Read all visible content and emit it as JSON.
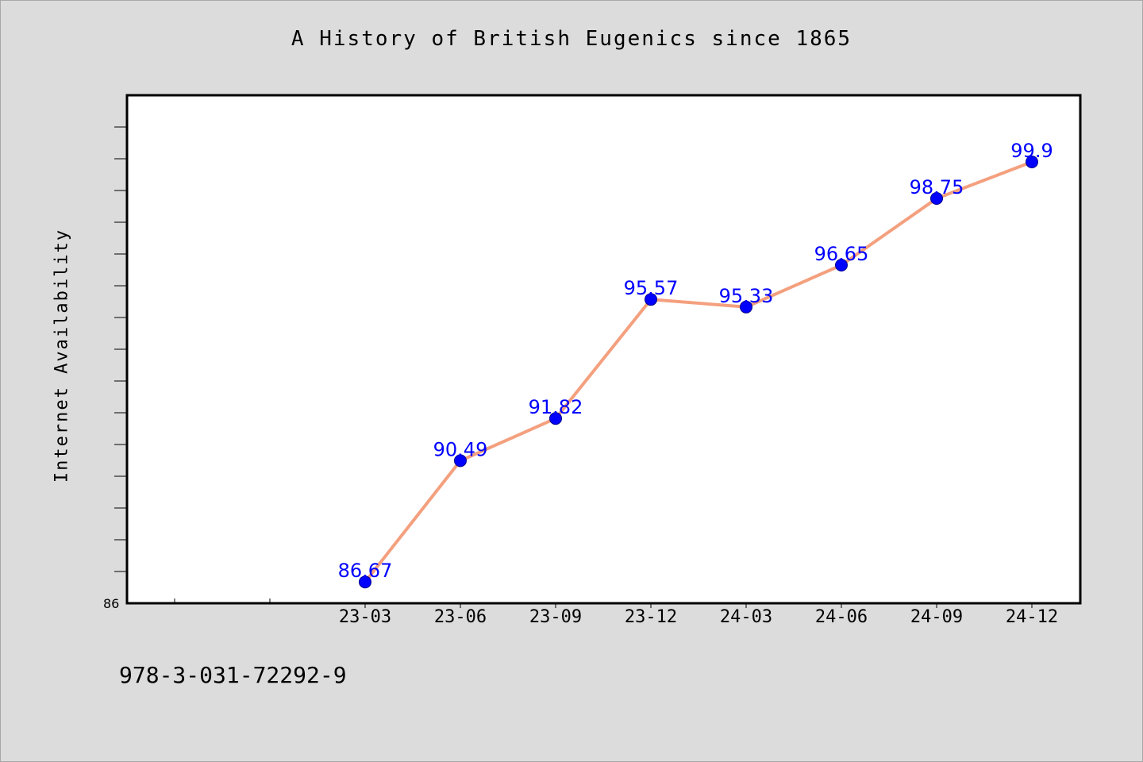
{
  "chart_data": {
    "type": "line",
    "title": "A History of British Eugenics since 1865",
    "xlabel": "",
    "ylabel": "Internet Availability",
    "categories": [
      "23-03",
      "23-06",
      "23-09",
      "23-12",
      "24-03",
      "24-06",
      "24-09",
      "24-12"
    ],
    "series": [
      {
        "values": [
          86.67,
          90.49,
          91.82,
          95.57,
          95.33,
          96.65,
          98.75,
          99.9
        ],
        "labels": [
          "86.67",
          "90.49",
          "91.82",
          "95.57",
          "95.33",
          "96.65",
          "98.75",
          "99.9"
        ]
      }
    ],
    "ylim": [
      86,
      102
    ],
    "y_tick_labels": [
      "86"
    ],
    "line_color": "#f4a07e",
    "marker_color": "#0000ff",
    "label_color": "#0000ff",
    "grid": false,
    "legend": "none"
  },
  "footer_text": "978-3-031-72292-9"
}
